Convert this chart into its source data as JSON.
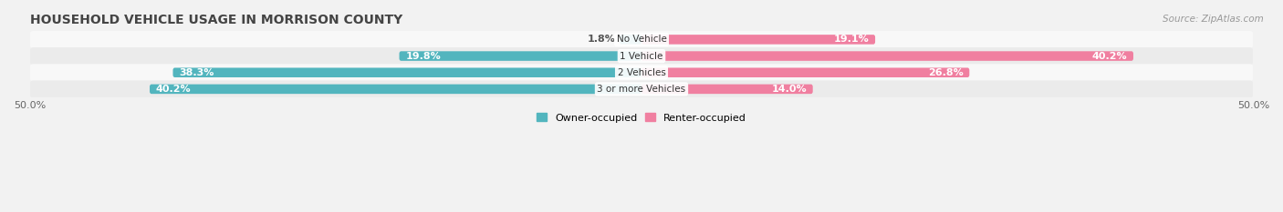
{
  "title": "HOUSEHOLD VEHICLE USAGE IN MORRISON COUNTY",
  "source": "Source: ZipAtlas.com",
  "categories": [
    "No Vehicle",
    "1 Vehicle",
    "2 Vehicles",
    "3 or more Vehicles"
  ],
  "owner_values": [
    1.8,
    19.8,
    38.3,
    40.2
  ],
  "renter_values": [
    19.1,
    40.2,
    26.8,
    14.0
  ],
  "owner_color": "#52b5be",
  "renter_color": "#f07fa0",
  "background_color": "#f2f2f2",
  "row_bg_light": "#f8f8f8",
  "row_bg_dark": "#ebebeb",
  "xlim": 50.0,
  "legend_owner": "Owner-occupied",
  "legend_renter": "Renter-occupied",
  "title_fontsize": 10,
  "source_fontsize": 7.5,
  "label_fontsize": 8,
  "tick_fontsize": 8,
  "category_fontsize": 7.5,
  "bar_height": 0.58
}
